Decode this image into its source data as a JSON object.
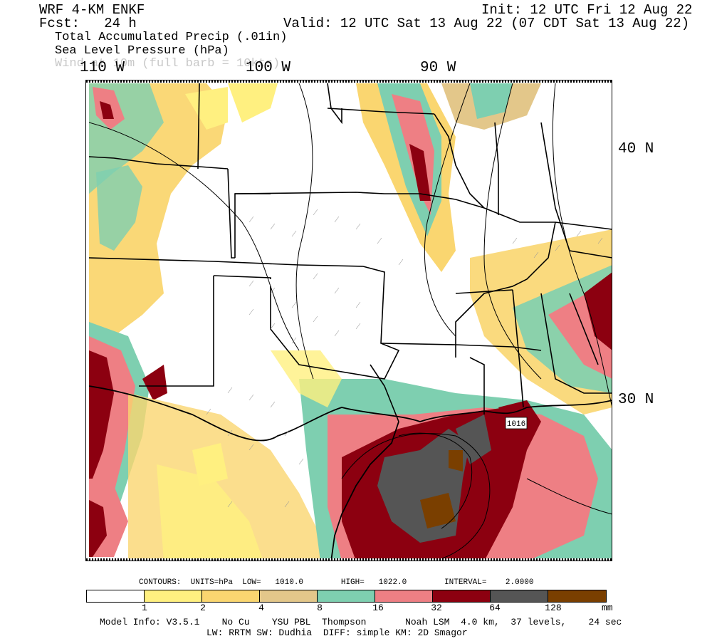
{
  "header": {
    "model": "WRF 4-KM ENKF",
    "fcst": "Fcst:   24 h",
    "init": "Init: 12 UTC Fri 12 Aug 22",
    "valid": "Valid: 12 UTC Sat 13 Aug 22 (07 CDT Sat 13 Aug 22)",
    "field1": "Total Accumulated Precip (.01in)",
    "field2": "Sea Level Pressure (hPa)",
    "field3": "Wind at 10m (full barb = 10kts)"
  },
  "map": {
    "lon_labels": [
      "110 W",
      "100 W",
      "90 W"
    ],
    "lat_labels": [
      "40 N",
      "30 N"
    ],
    "pressure_label": "1016"
  },
  "legend": {
    "contours": "CONTOURS:  UNITS=hPa  LOW=   1010.0        HIGH=   1022.0        INTERVAL=    2.0000",
    "tick_labels": [
      "1",
      "2",
      "4",
      "8",
      "16",
      "32",
      "64",
      "128"
    ],
    "unit": "mm",
    "colors": [
      "#ffffff",
      "#fff080",
      "#fad670",
      "#e3c78a",
      "#7ecfb0",
      "#ee7f84",
      "#8c0010",
      "#555555",
      "#7a3f00"
    ]
  },
  "model_info": {
    "line1": "Model Info: V3.5.1    No Cu    YSU PBL  Thompson       Noah LSM  4.0 km,  37 levels,    24 sec",
    "line2": "LW: RRTM SW: Dudhia  DIFF: simple KM: 2D Smagor"
  }
}
